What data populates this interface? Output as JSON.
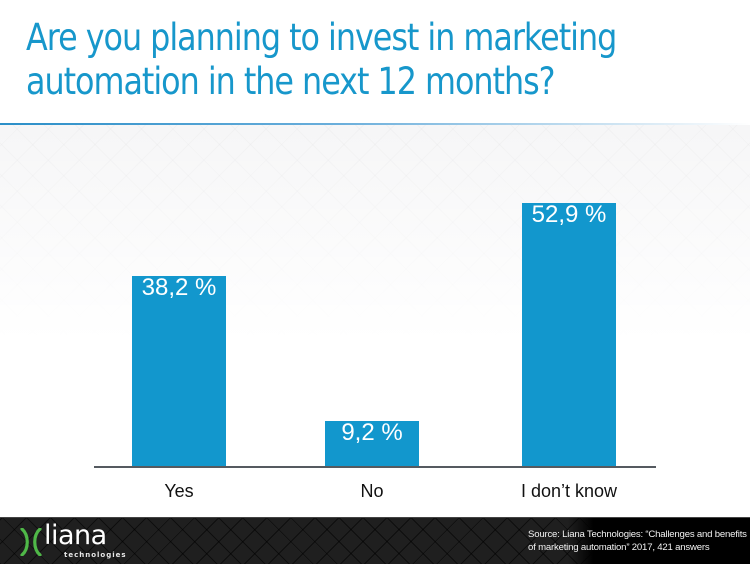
{
  "header": {
    "title_line1": "Are you planning to invest in marketing",
    "title_line2": "automation in the next 12 months?",
    "accent_color": "#1797cb"
  },
  "chart_data": {
    "type": "bar",
    "title": "Are you planning to invest in marketing automation in the next 12 months?",
    "categories": [
      "Yes",
      "No",
      "I don’t know"
    ],
    "values": [
      38.2,
      9.2,
      52.9
    ],
    "value_labels": [
      "38,2 %",
      "9,2 %",
      "52,9 %"
    ],
    "unit": "%",
    "xlabel": "",
    "ylabel": "",
    "ylim": [
      0,
      60
    ],
    "grid": false,
    "legend": null,
    "bar_color": "#1297cd"
  },
  "footer": {
    "logo_word": "liana",
    "logo_sub": "technologies",
    "logo_mark_color": "#4fb848",
    "source_line1": "Source: Liana Technologies: “Challenges and benefits",
    "source_line2": "of marketing automation” 2017, 421 answers"
  }
}
